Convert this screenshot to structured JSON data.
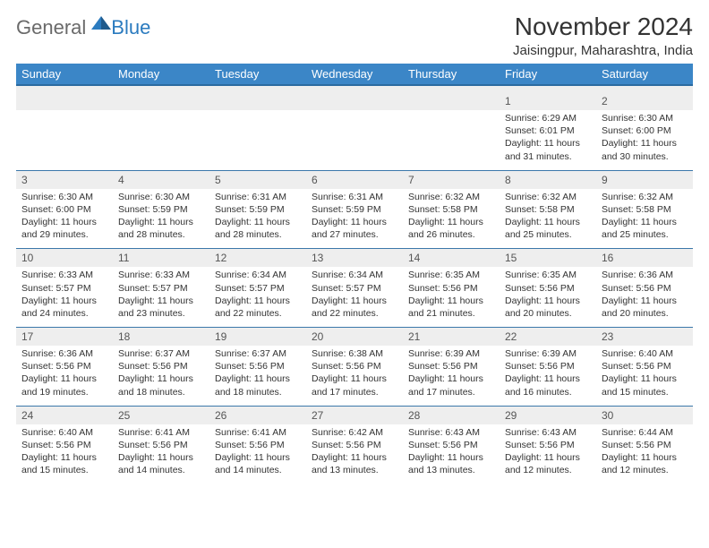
{
  "brand": {
    "general": "General",
    "blue": "Blue"
  },
  "title": "November 2024",
  "location": "Jaisingpur, Maharashtra, India",
  "dow": [
    "Sunday",
    "Monday",
    "Tuesday",
    "Wednesday",
    "Thursday",
    "Friday",
    "Saturday"
  ],
  "colors": {
    "header_bg": "#3b86c7",
    "header_text": "#ffffff",
    "row_sep": "#3b78aa",
    "daynum_bg": "#eeeeee",
    "logo_gray": "#6a6a6a",
    "logo_blue": "#2b7bbf",
    "body_text": "#333333"
  },
  "fonts": {
    "title_pt": 28,
    "location_pt": 15,
    "dow_pt": 13,
    "daynum_pt": 12,
    "detail_pt": 10.5
  },
  "weeks": [
    [
      null,
      null,
      null,
      null,
      null,
      {
        "n": "1",
        "sr": "Sunrise: 6:29 AM",
        "ss": "Sunset: 6:01 PM",
        "dl1": "Daylight: 11 hours",
        "dl2": "and 31 minutes."
      },
      {
        "n": "2",
        "sr": "Sunrise: 6:30 AM",
        "ss": "Sunset: 6:00 PM",
        "dl1": "Daylight: 11 hours",
        "dl2": "and 30 minutes."
      }
    ],
    [
      {
        "n": "3",
        "sr": "Sunrise: 6:30 AM",
        "ss": "Sunset: 6:00 PM",
        "dl1": "Daylight: 11 hours",
        "dl2": "and 29 minutes."
      },
      {
        "n": "4",
        "sr": "Sunrise: 6:30 AM",
        "ss": "Sunset: 5:59 PM",
        "dl1": "Daylight: 11 hours",
        "dl2": "and 28 minutes."
      },
      {
        "n": "5",
        "sr": "Sunrise: 6:31 AM",
        "ss": "Sunset: 5:59 PM",
        "dl1": "Daylight: 11 hours",
        "dl2": "and 28 minutes."
      },
      {
        "n": "6",
        "sr": "Sunrise: 6:31 AM",
        "ss": "Sunset: 5:59 PM",
        "dl1": "Daylight: 11 hours",
        "dl2": "and 27 minutes."
      },
      {
        "n": "7",
        "sr": "Sunrise: 6:32 AM",
        "ss": "Sunset: 5:58 PM",
        "dl1": "Daylight: 11 hours",
        "dl2": "and 26 minutes."
      },
      {
        "n": "8",
        "sr": "Sunrise: 6:32 AM",
        "ss": "Sunset: 5:58 PM",
        "dl1": "Daylight: 11 hours",
        "dl2": "and 25 minutes."
      },
      {
        "n": "9",
        "sr": "Sunrise: 6:32 AM",
        "ss": "Sunset: 5:58 PM",
        "dl1": "Daylight: 11 hours",
        "dl2": "and 25 minutes."
      }
    ],
    [
      {
        "n": "10",
        "sr": "Sunrise: 6:33 AM",
        "ss": "Sunset: 5:57 PM",
        "dl1": "Daylight: 11 hours",
        "dl2": "and 24 minutes."
      },
      {
        "n": "11",
        "sr": "Sunrise: 6:33 AM",
        "ss": "Sunset: 5:57 PM",
        "dl1": "Daylight: 11 hours",
        "dl2": "and 23 minutes."
      },
      {
        "n": "12",
        "sr": "Sunrise: 6:34 AM",
        "ss": "Sunset: 5:57 PM",
        "dl1": "Daylight: 11 hours",
        "dl2": "and 22 minutes."
      },
      {
        "n": "13",
        "sr": "Sunrise: 6:34 AM",
        "ss": "Sunset: 5:57 PM",
        "dl1": "Daylight: 11 hours",
        "dl2": "and 22 minutes."
      },
      {
        "n": "14",
        "sr": "Sunrise: 6:35 AM",
        "ss": "Sunset: 5:56 PM",
        "dl1": "Daylight: 11 hours",
        "dl2": "and 21 minutes."
      },
      {
        "n": "15",
        "sr": "Sunrise: 6:35 AM",
        "ss": "Sunset: 5:56 PM",
        "dl1": "Daylight: 11 hours",
        "dl2": "and 20 minutes."
      },
      {
        "n": "16",
        "sr": "Sunrise: 6:36 AM",
        "ss": "Sunset: 5:56 PM",
        "dl1": "Daylight: 11 hours",
        "dl2": "and 20 minutes."
      }
    ],
    [
      {
        "n": "17",
        "sr": "Sunrise: 6:36 AM",
        "ss": "Sunset: 5:56 PM",
        "dl1": "Daylight: 11 hours",
        "dl2": "and 19 minutes."
      },
      {
        "n": "18",
        "sr": "Sunrise: 6:37 AM",
        "ss": "Sunset: 5:56 PM",
        "dl1": "Daylight: 11 hours",
        "dl2": "and 18 minutes."
      },
      {
        "n": "19",
        "sr": "Sunrise: 6:37 AM",
        "ss": "Sunset: 5:56 PM",
        "dl1": "Daylight: 11 hours",
        "dl2": "and 18 minutes."
      },
      {
        "n": "20",
        "sr": "Sunrise: 6:38 AM",
        "ss": "Sunset: 5:56 PM",
        "dl1": "Daylight: 11 hours",
        "dl2": "and 17 minutes."
      },
      {
        "n": "21",
        "sr": "Sunrise: 6:39 AM",
        "ss": "Sunset: 5:56 PM",
        "dl1": "Daylight: 11 hours",
        "dl2": "and 17 minutes."
      },
      {
        "n": "22",
        "sr": "Sunrise: 6:39 AM",
        "ss": "Sunset: 5:56 PM",
        "dl1": "Daylight: 11 hours",
        "dl2": "and 16 minutes."
      },
      {
        "n": "23",
        "sr": "Sunrise: 6:40 AM",
        "ss": "Sunset: 5:56 PM",
        "dl1": "Daylight: 11 hours",
        "dl2": "and 15 minutes."
      }
    ],
    [
      {
        "n": "24",
        "sr": "Sunrise: 6:40 AM",
        "ss": "Sunset: 5:56 PM",
        "dl1": "Daylight: 11 hours",
        "dl2": "and 15 minutes."
      },
      {
        "n": "25",
        "sr": "Sunrise: 6:41 AM",
        "ss": "Sunset: 5:56 PM",
        "dl1": "Daylight: 11 hours",
        "dl2": "and 14 minutes."
      },
      {
        "n": "26",
        "sr": "Sunrise: 6:41 AM",
        "ss": "Sunset: 5:56 PM",
        "dl1": "Daylight: 11 hours",
        "dl2": "and 14 minutes."
      },
      {
        "n": "27",
        "sr": "Sunrise: 6:42 AM",
        "ss": "Sunset: 5:56 PM",
        "dl1": "Daylight: 11 hours",
        "dl2": "and 13 minutes."
      },
      {
        "n": "28",
        "sr": "Sunrise: 6:43 AM",
        "ss": "Sunset: 5:56 PM",
        "dl1": "Daylight: 11 hours",
        "dl2": "and 13 minutes."
      },
      {
        "n": "29",
        "sr": "Sunrise: 6:43 AM",
        "ss": "Sunset: 5:56 PM",
        "dl1": "Daylight: 11 hours",
        "dl2": "and 12 minutes."
      },
      {
        "n": "30",
        "sr": "Sunrise: 6:44 AM",
        "ss": "Sunset: 5:56 PM",
        "dl1": "Daylight: 11 hours",
        "dl2": "and 12 minutes."
      }
    ]
  ]
}
